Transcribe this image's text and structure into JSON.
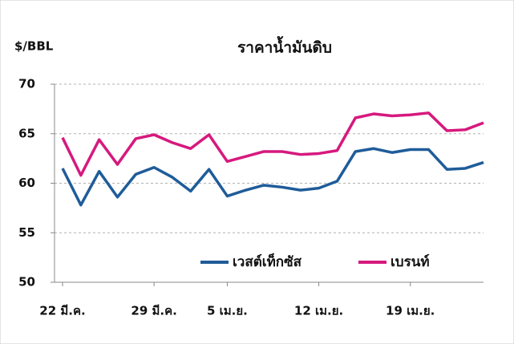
{
  "chart_data": {
    "type": "line",
    "title": "ราคาน้ำมันดิบ",
    "y_label": "$/BBL",
    "categories": [
      "22 มี.ค.",
      null,
      null,
      null,
      null,
      "29 มี.ค.",
      null,
      null,
      null,
      "5 เม.ย.",
      null,
      null,
      null,
      null,
      "12 เม.ย.",
      null,
      null,
      null,
      null,
      "19 เม.ย.",
      null,
      null,
      null,
      null
    ],
    "series": [
      {
        "name": "เวสต์เท็กซัส",
        "color": "#1f5c99",
        "values": [
          61.5,
          57.8,
          61.2,
          58.6,
          60.9,
          61.6,
          60.6,
          59.2,
          61.4,
          58.7,
          59.3,
          59.8,
          59.6,
          59.3,
          59.5,
          60.2,
          63.2,
          63.5,
          63.1,
          63.4,
          63.4,
          61.4,
          61.5,
          62.1
        ]
      },
      {
        "name": "เบรนท์",
        "color": "#d6197e",
        "values": [
          64.6,
          60.8,
          64.4,
          61.9,
          64.5,
          64.9,
          64.1,
          63.5,
          64.9,
          62.2,
          62.7,
          63.2,
          63.2,
          62.9,
          63.0,
          63.3,
          66.6,
          67.0,
          66.8,
          66.9,
          67.1,
          65.3,
          65.4,
          66.1
        ]
      }
    ],
    "ylim": [
      50,
      70
    ],
    "yticks": [
      50,
      55,
      60,
      65,
      70
    ],
    "grid": true,
    "legend": "lower-right"
  }
}
